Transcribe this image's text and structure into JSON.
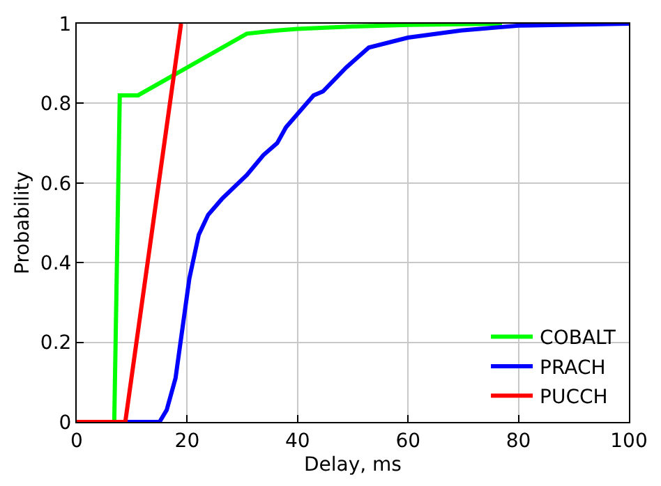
{
  "chart_data": {
    "type": "line",
    "xlabel": "Delay, ms",
    "ylabel": "Probability",
    "xlim": [
      0,
      100
    ],
    "xticks": [
      0,
      20,
      40,
      60,
      80,
      100
    ],
    "ylim": [
      0,
      1
    ],
    "yticks": [
      0,
      0.2,
      0.4,
      0.6,
      0.8,
      1
    ],
    "grid": true,
    "legend": "bottom right",
    "marker": "none",
    "line_style": "solid",
    "series": [
      {
        "name": "COBALT",
        "color": "#00ff00",
        "x": [
          0,
          6.8,
          7.8,
          11.1,
          30.8,
          36.3,
          40,
          50,
          60,
          77
        ],
        "values": [
          0,
          0,
          0.82,
          0.82,
          0.975,
          0.983,
          0.987,
          0.993,
          0.997,
          1
        ]
      },
      {
        "name": "PRACH",
        "color": "#0000ff",
        "x": [
          0,
          15,
          16.3,
          17.9,
          19.2,
          20.4,
          22.1,
          23.8,
          26.3,
          30.8,
          33.8,
          36.3,
          37.9,
          42.9,
          44.6,
          48.8,
          52.9,
          60,
          69.6,
          80,
          100
        ],
        "values": [
          0,
          0,
          0.03,
          0.11,
          0.24,
          0.36,
          0.47,
          0.52,
          0.56,
          0.62,
          0.67,
          0.7,
          0.74,
          0.82,
          0.83,
          0.89,
          0.94,
          0.965,
          0.983,
          0.995,
          1
        ]
      },
      {
        "name": "PUCCH",
        "color": "#ff0000",
        "x": [
          0,
          8.8,
          18.9
        ],
        "values": [
          0,
          0,
          1
        ]
      }
    ]
  }
}
